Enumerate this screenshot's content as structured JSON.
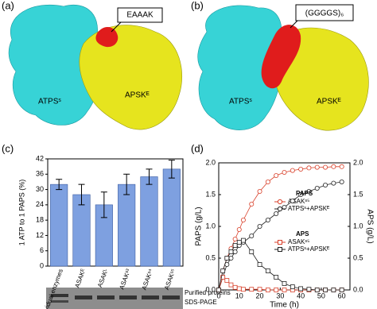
{
  "panels": {
    "a": {
      "label": "(a)",
      "linker": "EAAAK",
      "left": "ATPSˢ",
      "right": "APSKᴱ"
    },
    "b": {
      "label": "(b)",
      "linker": "(GGGGS)₆",
      "left": "ATPSˢ",
      "right": "APSKᴱ"
    },
    "c": {
      "label": "(c)",
      "gel_top": "Purified proteins",
      "gel_bottom": "SDS-PAGE"
    },
    "d": {
      "label": "(d)"
    }
  },
  "chart_data": [
    {
      "type": "bar",
      "ylabel": "1 ATP to 1 PAPS (%)",
      "categories": [
        "Individual enzymes",
        "ASAKᴱ",
        "ASAKᴸ",
        "ASAKˢ³",
        "ASAKˢ⁴",
        "ASAKˢ⁵"
      ],
      "values": [
        32,
        28,
        24,
        32,
        35,
        38
      ],
      "errors": [
        2,
        4,
        5,
        4,
        3,
        3.5
      ],
      "color": "#7ea0e0",
      "ylim": [
        0,
        42
      ],
      "yticks": [
        0,
        6,
        12,
        18,
        24,
        30,
        36,
        42
      ]
    },
    {
      "type": "line",
      "xlabel": "Time (h)",
      "ylabel": "PAPS (g/L)",
      "y2label": "APS (g/L)",
      "legend_titles": [
        "PAPS",
        "APS"
      ],
      "x": [
        0,
        2,
        4,
        6,
        8,
        10,
        12,
        16,
        20,
        24,
        28,
        32,
        36,
        40,
        44,
        48,
        52,
        56,
        60
      ],
      "series": [
        {
          "name": "ASAKˢ⁵",
          "color": "#d9412b",
          "marker": "circle",
          "values": [
            0,
            0.3,
            0.5,
            0.65,
            0.8,
            0.95,
            1.1,
            1.35,
            1.55,
            1.7,
            1.8,
            1.85,
            1.88,
            1.9,
            1.92,
            1.93,
            1.93,
            1.94,
            1.94
          ]
        },
        {
          "name": "ATPSˢ+APSKᴱ",
          "color": "#222222",
          "marker": "circle",
          "values": [
            0,
            0.2,
            0.4,
            0.5,
            0.6,
            0.7,
            0.75,
            0.85,
            1.0,
            1.1,
            1.2,
            1.3,
            1.4,
            1.5,
            1.55,
            1.6,
            1.65,
            1.68,
            1.7
          ]
        },
        {
          "name": "ASAKˢ⁵",
          "color": "#d9412b",
          "marker": "square",
          "axis": "y2",
          "values": [
            0,
            0.2,
            0.15,
            0.08,
            0.04,
            0.02,
            0.01,
            0.01,
            0.01,
            0,
            0,
            0,
            0,
            0,
            0,
            0,
            0,
            0,
            0
          ]
        },
        {
          "name": "ATPSˢ+APSKᴱ",
          "color": "#222222",
          "marker": "square",
          "axis": "y2",
          "values": [
            0,
            0.3,
            0.5,
            0.6,
            0.7,
            0.75,
            0.78,
            0.6,
            0.4,
            0.3,
            0.2,
            0.1,
            0.05,
            0.02,
            0.01,
            0,
            0,
            0,
            0
          ]
        }
      ],
      "xlim": [
        0,
        64
      ],
      "xticks": [
        0,
        10,
        20,
        30,
        40,
        50,
        60
      ],
      "ylim": [
        0,
        2.0
      ],
      "yticks": [
        {
          "value": 0,
          "label": "0.0"
        },
        {
          "value": 0.5,
          "label": "0.5"
        },
        {
          "value": 1.0,
          "label": "1.0"
        },
        {
          "value": 1.5,
          "label": "1.5"
        },
        {
          "value": 2.0,
          "label": "2.0"
        }
      ],
      "y2lim": [
        0,
        2.0
      ],
      "y2ticks": [
        {
          "value": 0,
          "label": "0.0"
        },
        {
          "value": 0.5,
          "label": "0.5"
        },
        {
          "value": 1.0,
          "label": "1.0"
        },
        {
          "value": 1.5,
          "label": "1.5"
        },
        {
          "value": 2.0,
          "label": "2.0"
        }
      ]
    }
  ]
}
